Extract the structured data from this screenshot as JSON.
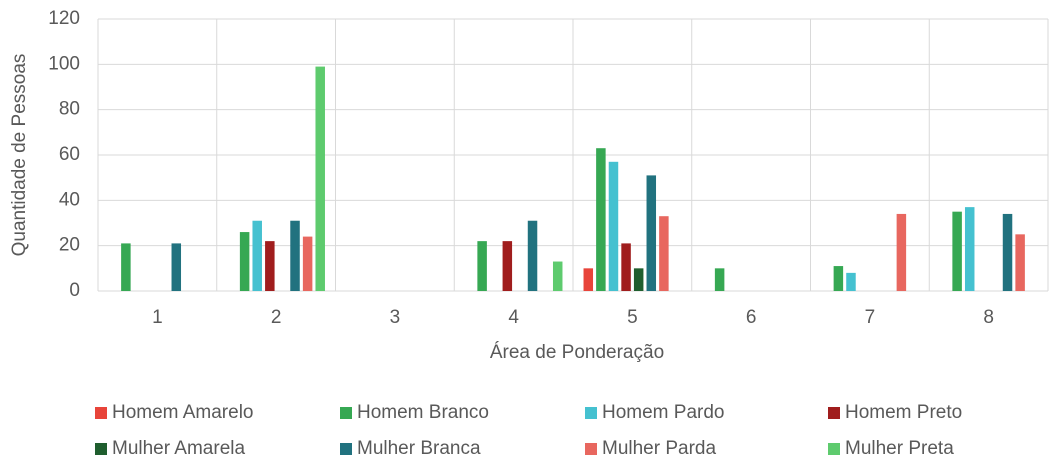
{
  "chart_data": {
    "type": "bar",
    "x_label": "Área de Ponderação",
    "y_label": "Quantidade de Pessoas",
    "categories": [
      "1",
      "2",
      "3",
      "4",
      "5",
      "6",
      "7",
      "8"
    ],
    "series": [
      {
        "name": "Homem Amarelo",
        "color": "#e8443a",
        "values": [
          0,
          0,
          0,
          0,
          10,
          0,
          0,
          0
        ]
      },
      {
        "name": "Homem Branco",
        "color": "#36a853",
        "values": [
          21,
          26,
          0,
          22,
          63,
          10,
          11,
          35
        ]
      },
      {
        "name": "Homem Pardo",
        "color": "#45c1d0",
        "values": [
          0,
          31,
          0,
          0,
          57,
          0,
          8,
          37
        ]
      },
      {
        "name": "Homem Preto",
        "color": "#a01d1d",
        "values": [
          0,
          22,
          0,
          22,
          21,
          0,
          0,
          0
        ]
      },
      {
        "name": "Mulher Amarela",
        "color": "#1f5e2e",
        "values": [
          0,
          0,
          0,
          0,
          10,
          0,
          0,
          0
        ]
      },
      {
        "name": "Mulher Branca",
        "color": "#21727f",
        "values": [
          21,
          31,
          0,
          31,
          51,
          0,
          0,
          34
        ]
      },
      {
        "name": "Mulher Parda",
        "color": "#e8675f",
        "values": [
          0,
          24,
          0,
          0,
          33,
          0,
          34,
          25
        ]
      },
      {
        "name": "Mulher Preta",
        "color": "#5ecb6e",
        "values": [
          0,
          99,
          0,
          13,
          0,
          0,
          0,
          0
        ]
      }
    ],
    "ylim": [
      0,
      120
    ],
    "yticks": [
      0,
      20,
      40,
      60,
      80,
      100,
      120
    ],
    "grid": true,
    "legend": "bottom"
  }
}
